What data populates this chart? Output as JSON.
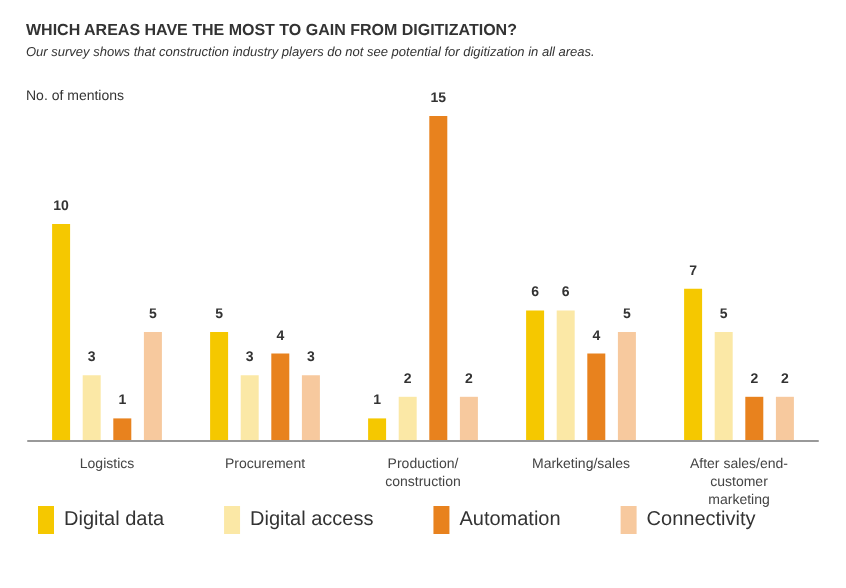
{
  "chart_data": {
    "type": "bar",
    "title": "WHICH AREAS HAVE THE MOST TO GAIN FROM DIGITIZATION?",
    "subtitle": "Our survey shows that construction industry players do not see potential for digitization in all areas.",
    "ylabel": "No. of mentions",
    "categories": [
      "Logistics",
      "Procurement",
      "Production/construction",
      "Marketing/sales",
      "After sales/end-customer marketing"
    ],
    "series": [
      {
        "name": "Digital data",
        "color": "#f5c800",
        "values": [
          10,
          5,
          1,
          6,
          7
        ]
      },
      {
        "name": "Digital access",
        "color": "#fbe8a6",
        "values": [
          3,
          3,
          2,
          6,
          5
        ]
      },
      {
        "name": "Automation",
        "color": "#e8821e",
        "values": [
          1,
          4,
          15,
          4,
          2
        ]
      },
      {
        "name": "Connectivity",
        "color": "#f7c99e",
        "values": [
          5,
          3,
          2,
          5,
          2
        ]
      }
    ],
    "data_labels": true,
    "tick_labels": "x",
    "grid": false,
    "legend": "bottom left"
  }
}
